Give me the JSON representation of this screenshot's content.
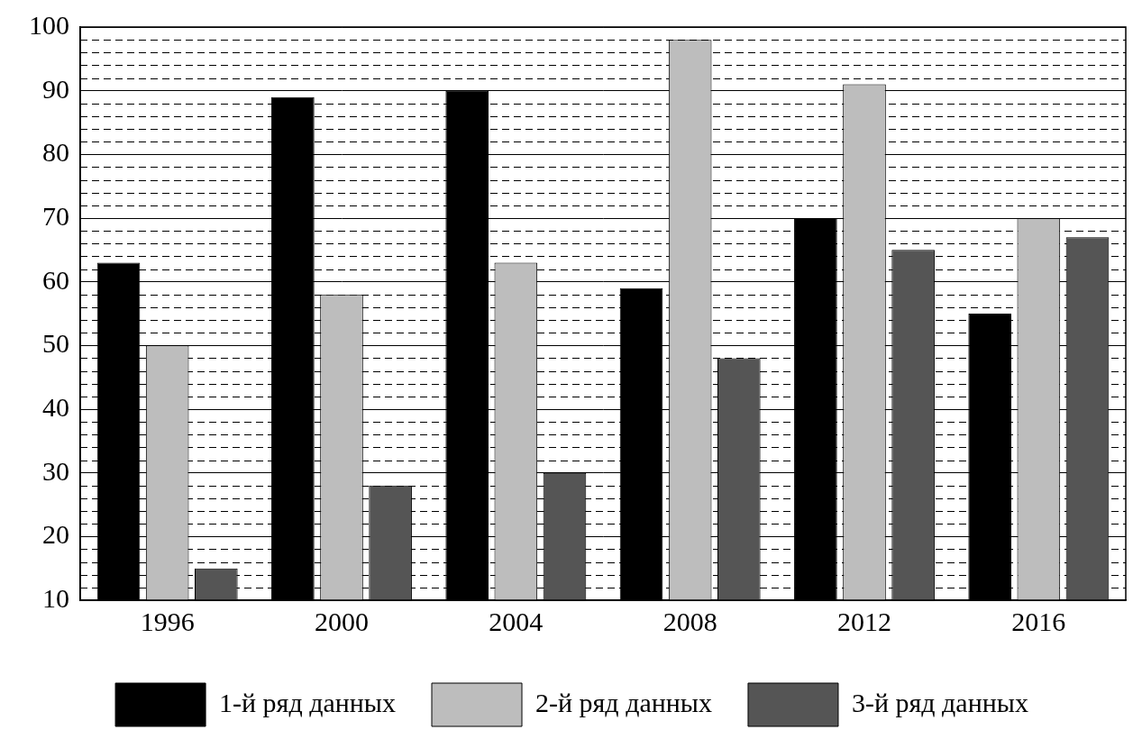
{
  "chart_data": {
    "type": "bar",
    "categories": [
      "1996",
      "2000",
      "2004",
      "2008",
      "2012",
      "2016"
    ],
    "series": [
      {
        "name": "1-й ряд данных",
        "color": "#000000",
        "values": [
          63,
          89,
          90,
          59,
          70,
          55
        ]
      },
      {
        "name": "2-й ряд данных",
        "color": "#bdbdbd",
        "values": [
          50,
          58,
          63,
          98,
          91,
          70
        ]
      },
      {
        "name": "3-й ряд данных",
        "color": "#555555",
        "values": [
          15,
          28,
          30,
          48,
          65,
          67
        ]
      }
    ],
    "ylim": [
      10,
      100
    ],
    "yticks": [
      10,
      20,
      30,
      40,
      50,
      60,
      70,
      80,
      90,
      100
    ],
    "grid": true,
    "legend": "bottom"
  }
}
